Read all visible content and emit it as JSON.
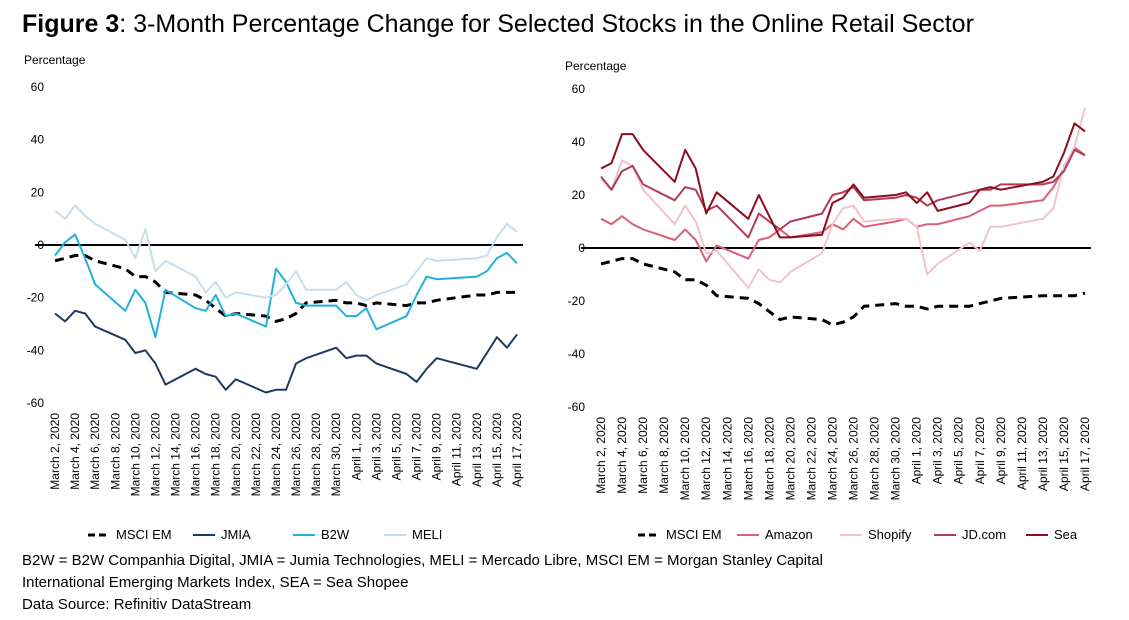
{
  "title": {
    "prefix": "Figure 3",
    "text": ": 3-Month Percentage Change for Selected Stocks in the Online Retail Sector"
  },
  "notes": [
    "B2W = B2W Companhia Digital, JMIA = Jumia Technologies, MELI = Mercado Libre, MSCI EM = Morgan Stanley Capital",
    "International Emerging Markets Index, SEA = Sea Shopee",
    "Data Source: Refinitiv DataStream"
  ],
  "chart_data": [
    {
      "type": "line",
      "title": "",
      "ylabel": "Percentage",
      "xlabel": "",
      "ylim": [
        -60,
        60
      ],
      "yticks": [
        60,
        40,
        20,
        0,
        -20,
        -40,
        -60
      ],
      "grid": false,
      "legend_position": "bottom",
      "x": [
        "March 2, 2020",
        "March 3, 2020",
        "March 4, 2020",
        "March 5, 2020",
        "March 6, 2020",
        "March 9, 2020",
        "March 10, 2020",
        "March 11, 2020",
        "March 12, 2020",
        "March 13, 2020",
        "March 16, 2020",
        "March 17, 2020",
        "March 18, 2020",
        "March 19, 2020",
        "March 20, 2020",
        "March 23, 2020",
        "March 24, 2020",
        "March 25, 2020",
        "March 26, 2020",
        "March 27, 2020",
        "March 30, 2020",
        "March 31, 2020",
        "April 1, 2020",
        "April 2, 2020",
        "April 3, 2020",
        "April 6, 2020",
        "April 7, 2020",
        "April 8, 2020",
        "April 9, 2020",
        "April 13, 2020",
        "April 14, 2020",
        "April 15, 2020",
        "April 16, 2020",
        "April 17, 2020"
      ],
      "tick_labels": [
        "March 2, 2020",
        "March 4, 2020",
        "March 6, 2020",
        "March 8, 2020",
        "March 10, 2020",
        "March 12, 2020",
        "March 14, 2020",
        "March 16, 2020",
        "March 18, 2020",
        "March 20, 2020",
        "March 22, 2020",
        "March 24, 2020",
        "March 26, 2020",
        "March 28, 2020",
        "March 30, 2020",
        "April 1, 2020",
        "April 3, 2020",
        "April 5, 2020",
        "April 7, 2020",
        "April 9, 2020",
        "April 11, 2020",
        "April 13, 2020",
        "April 15, 2020",
        "April 17, 2020"
      ],
      "series": [
        {
          "name": "MSCI EM",
          "color": "#000000",
          "dash": true,
          "values": [
            -6,
            -5,
            -4,
            -4,
            -6,
            -9,
            -12,
            -12,
            -14,
            -18,
            -19,
            -21,
            -24,
            -27,
            -26,
            -27,
            -29,
            -28,
            -26,
            -22,
            -21,
            -22,
            -22,
            -23,
            -22,
            -23,
            -22,
            -22,
            -21,
            -19,
            -19,
            -18,
            -18,
            -18
          ]
        },
        {
          "name": "JMIA",
          "color": "#1f3a5f",
          "dash": false,
          "values": [
            -26,
            -29,
            -25,
            -26,
            -31,
            -36,
            -41,
            -40,
            -45,
            -53,
            -47,
            -49,
            -50,
            -55,
            -51,
            -56,
            -55,
            -55,
            -45,
            -43,
            -39,
            -43,
            -42,
            -42,
            -45,
            -49,
            -52,
            -47,
            -43,
            -47,
            -41,
            -35,
            -39,
            -34
          ]
        },
        {
          "name": "B2W",
          "color": "#1fb2d8",
          "dash": false,
          "values": [
            -4,
            1,
            4,
            -5,
            -15,
            -25,
            -17,
            -22,
            -35,
            -17,
            -24,
            -25,
            -19,
            -27,
            -26,
            -31,
            -9,
            -14,
            -22,
            -23,
            -23,
            -27,
            -27,
            -24,
            -32,
            -27,
            -19,
            -12,
            -13,
            -12,
            -10,
            -5,
            -3,
            -7
          ]
        },
        {
          "name": "MELI",
          "color": "#c9dcea",
          "dash": false,
          "values": [
            13,
            10,
            15,
            11,
            8,
            2,
            -5,
            6,
            -10,
            -6,
            -12,
            -18,
            -14,
            -20,
            -18,
            -20,
            -19,
            -15,
            -10,
            -17,
            -17,
            -14,
            -19,
            -21,
            -19,
            -15,
            -10,
            -5,
            -6,
            -5,
            -4,
            3,
            8,
            5
          ]
        }
      ]
    },
    {
      "type": "line",
      "title": "",
      "ylabel": "Percentage",
      "xlabel": "",
      "ylim": [
        -60,
        60
      ],
      "yticks": [
        60,
        40,
        20,
        0,
        -20,
        -40,
        -60
      ],
      "grid": false,
      "legend_position": "bottom",
      "x": [
        "March 2, 2020",
        "March 3, 2020",
        "March 4, 2020",
        "March 5, 2020",
        "March 6, 2020",
        "March 9, 2020",
        "March 10, 2020",
        "March 11, 2020",
        "March 12, 2020",
        "March 13, 2020",
        "March 16, 2020",
        "March 17, 2020",
        "March 18, 2020",
        "March 19, 2020",
        "March 20, 2020",
        "March 23, 2020",
        "March 24, 2020",
        "March 25, 2020",
        "March 26, 2020",
        "March 27, 2020",
        "March 30, 2020",
        "March 31, 2020",
        "April 1, 2020",
        "April 2, 2020",
        "April 3, 2020",
        "April 6, 2020",
        "April 7, 2020",
        "April 8, 2020",
        "April 9, 2020",
        "April 13, 2020",
        "April 14, 2020",
        "April 15, 2020",
        "April 16, 2020",
        "April 17, 2020"
      ],
      "tick_labels": [
        "March 2, 2020",
        "March 4, 2020",
        "March 6, 2020",
        "March 8, 2020",
        "March 10, 2020",
        "March 12, 2020",
        "March 14, 2020",
        "March 16, 2020",
        "March 18, 2020",
        "March 20, 2020",
        "March 22, 2020",
        "March 24, 2020",
        "March 26, 2020",
        "March 28, 2020",
        "March 30, 2020",
        "April 1, 2020",
        "April 3, 2020",
        "April 5, 2020",
        "April 7, 2020",
        "April 9, 2020",
        "April 11, 2020",
        "April 13, 2020",
        "April 15, 2020",
        "April 17, 2020"
      ],
      "series": [
        {
          "name": "MSCI EM",
          "color": "#000000",
          "dash": true,
          "values": [
            -6,
            -5,
            -4,
            -4,
            -6,
            -9,
            -12,
            -12,
            -14,
            -18,
            -19,
            -21,
            -24,
            -27,
            -26,
            -27,
            -29,
            -28,
            -26,
            -22,
            -21,
            -22,
            -22,
            -23,
            -22,
            -22,
            -21,
            -20,
            -19,
            -18,
            -18,
            -18,
            -18,
            -17
          ]
        },
        {
          "name": "Amazon",
          "color": "#d9607a",
          "dash": false,
          "values": [
            11,
            9,
            12,
            9,
            7,
            3,
            7,
            3,
            -5,
            1,
            -4,
            3,
            4,
            7,
            4,
            6,
            9,
            7,
            11,
            8,
            10,
            11,
            8,
            9,
            9,
            12,
            14,
            16,
            16,
            18,
            23,
            30,
            38,
            35
          ]
        },
        {
          "name": "Shopify",
          "color": "#f0c3cd",
          "dash": false,
          "values": [
            26,
            22,
            33,
            31,
            22,
            9,
            16,
            10,
            -2,
            -1,
            -15,
            -8,
            -12,
            -13,
            -9,
            -2,
            9,
            15,
            16,
            10,
            11,
            11,
            8,
            -10,
            -6,
            2,
            -1,
            8,
            8,
            11,
            15,
            31,
            38,
            53
          ]
        },
        {
          "name": "JD.com",
          "color": "#b03c55",
          "dash": false,
          "values": [
            27,
            22,
            29,
            31,
            24,
            18,
            23,
            22,
            14,
            16,
            4,
            13,
            10,
            7,
            10,
            13,
            20,
            21,
            23,
            18,
            19,
            20,
            19,
            16,
            18,
            21,
            22,
            22,
            24,
            24,
            25,
            29,
            37,
            35
          ]
        },
        {
          "name": "Sea",
          "color": "#8c0e1e",
          "dash": false,
          "values": [
            30,
            32,
            43,
            43,
            37,
            25,
            37,
            30,
            13,
            21,
            11,
            20,
            12,
            4,
            4,
            5,
            17,
            19,
            24,
            19,
            20,
            21,
            17,
            21,
            14,
            17,
            22,
            23,
            22,
            25,
            27,
            36,
            47,
            44
          ]
        }
      ]
    }
  ]
}
